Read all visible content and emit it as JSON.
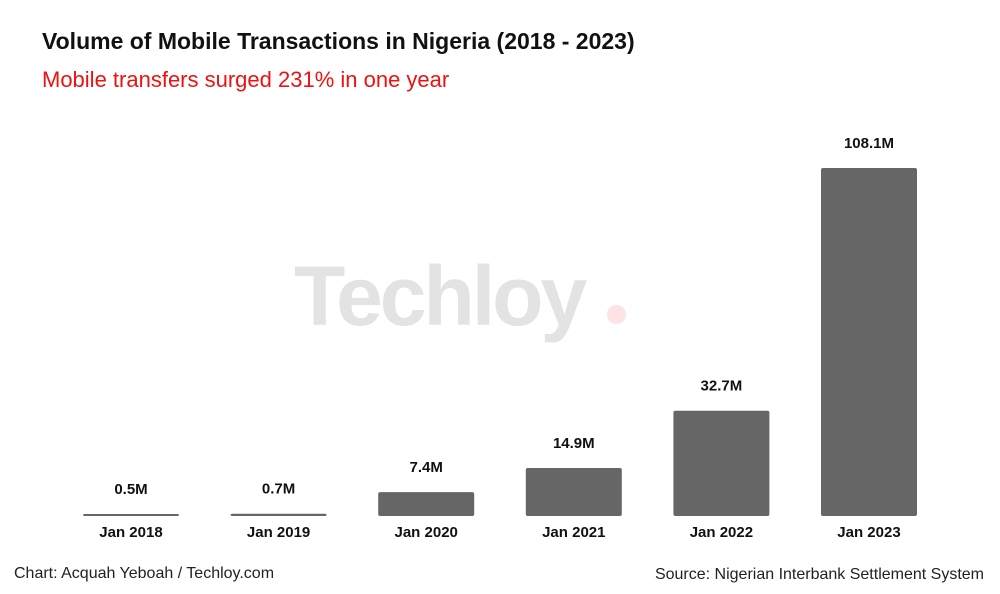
{
  "chart_data": {
    "type": "bar",
    "title": "Volume of Mobile Transactions in Nigeria (2018 - 2023)",
    "subtitle": "Mobile transfers surged 231% in one year",
    "categories": [
      "Jan 2018",
      "Jan 2019",
      "Jan 2020",
      "Jan 2021",
      "Jan 2022",
      "Jan 2023"
    ],
    "values": [
      0.5,
      0.7,
      7.4,
      14.9,
      32.7,
      108.1
    ],
    "data_labels": [
      "0.5M",
      "0.7M",
      "7.4M",
      "14.9M",
      "32.7M",
      "108.1M"
    ],
    "unit": "M",
    "xlabel": "",
    "ylabel": "",
    "ylim": [
      0,
      108.1
    ],
    "grid": false,
    "bar_color": "#666666",
    "subtitle_color": "#ee1111"
  },
  "watermark": "Techloy",
  "footer": {
    "credit": "Chart: Acquah Yeboah / Techloy.com",
    "source": "Source: Nigerian Interbank Settlement System"
  }
}
